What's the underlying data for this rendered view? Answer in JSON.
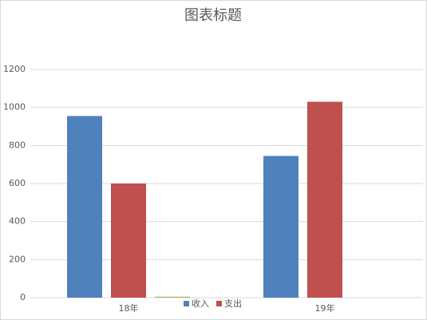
{
  "chart_data": {
    "type": "bar",
    "title": "图表标题",
    "categories": [
      "18年",
      "19年"
    ],
    "series": [
      {
        "name": "收入",
        "color": "#4f81bd",
        "values": [
          955,
          745
        ]
      },
      {
        "name": "支出",
        "color": "#c0504d",
        "values": [
          600,
          1030
        ]
      },
      {
        "color": "#9bbb59",
        "values": [
          5,
          0
        ]
      }
    ],
    "ylim": [
      0,
      1200
    ],
    "yticks": [
      0,
      200,
      400,
      600,
      800,
      1000,
      1200
    ],
    "grid": true,
    "legend": "bottom"
  }
}
